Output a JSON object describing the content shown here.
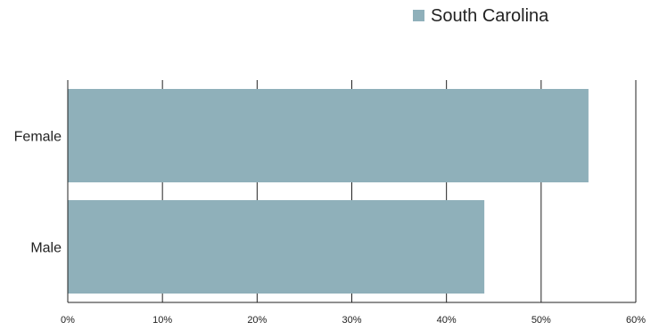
{
  "chart_data": {
    "type": "bar",
    "orientation": "horizontal",
    "categories": [
      "Female",
      "Male"
    ],
    "series": [
      {
        "name": "South Carolina",
        "values": [
          55,
          44
        ],
        "color": "#8fb0ba"
      }
    ],
    "xlim": [
      0,
      60
    ],
    "x_ticks": [
      0,
      10,
      20,
      30,
      40,
      50,
      60
    ],
    "x_tick_labels": [
      "0%",
      "10%",
      "20%",
      "30%",
      "40%",
      "50%",
      "60%"
    ],
    "value_unit": "%",
    "grid": "vertical",
    "legend_position": "top-right",
    "title": "",
    "xlabel": "",
    "ylabel": ""
  }
}
